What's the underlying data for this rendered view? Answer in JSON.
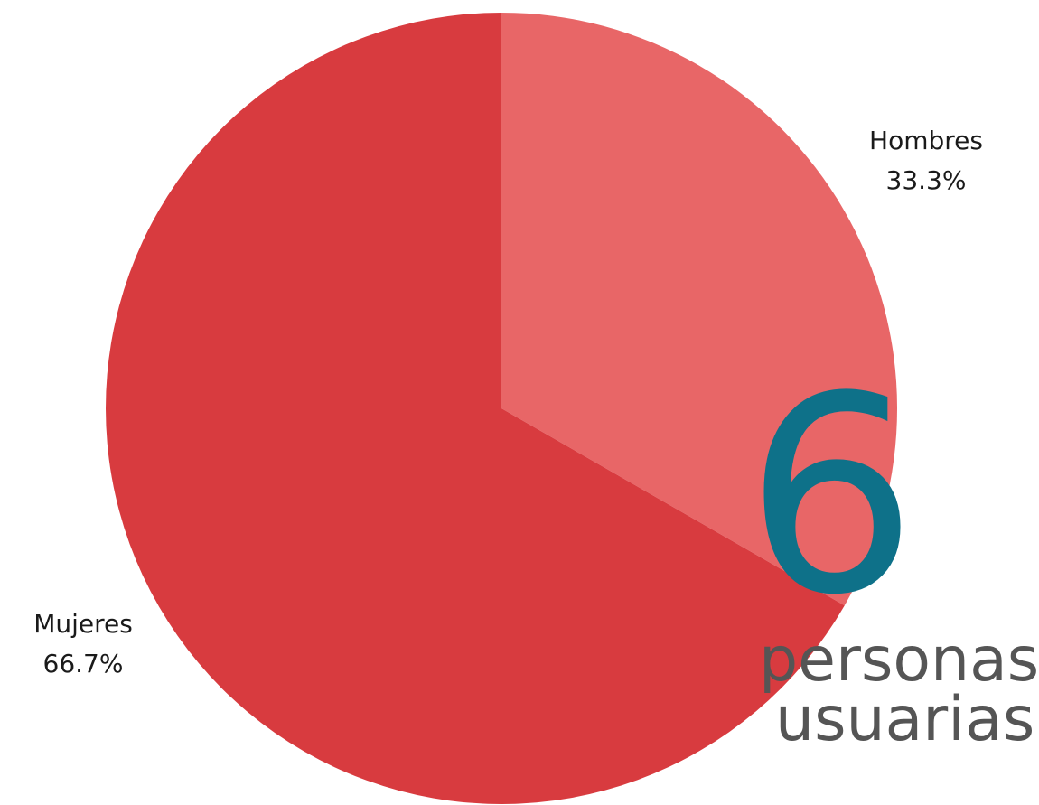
{
  "chart_data": {
    "type": "pie",
    "title": "",
    "start_angle_deg": 0,
    "direction": "clockwise",
    "slices": [
      {
        "label": "Hombres",
        "percent_label": "33.3%",
        "value": 33.3,
        "color": "#e86667"
      },
      {
        "label": "Mujeres",
        "percent_label": "66.7%",
        "value": 66.7,
        "color": "#d83b3f"
      }
    ]
  },
  "highlight": {
    "number": "6",
    "caption_line1": "personas",
    "caption_line2": "usuarias",
    "number_color": "#0e7189",
    "caption_color": "#555555"
  }
}
